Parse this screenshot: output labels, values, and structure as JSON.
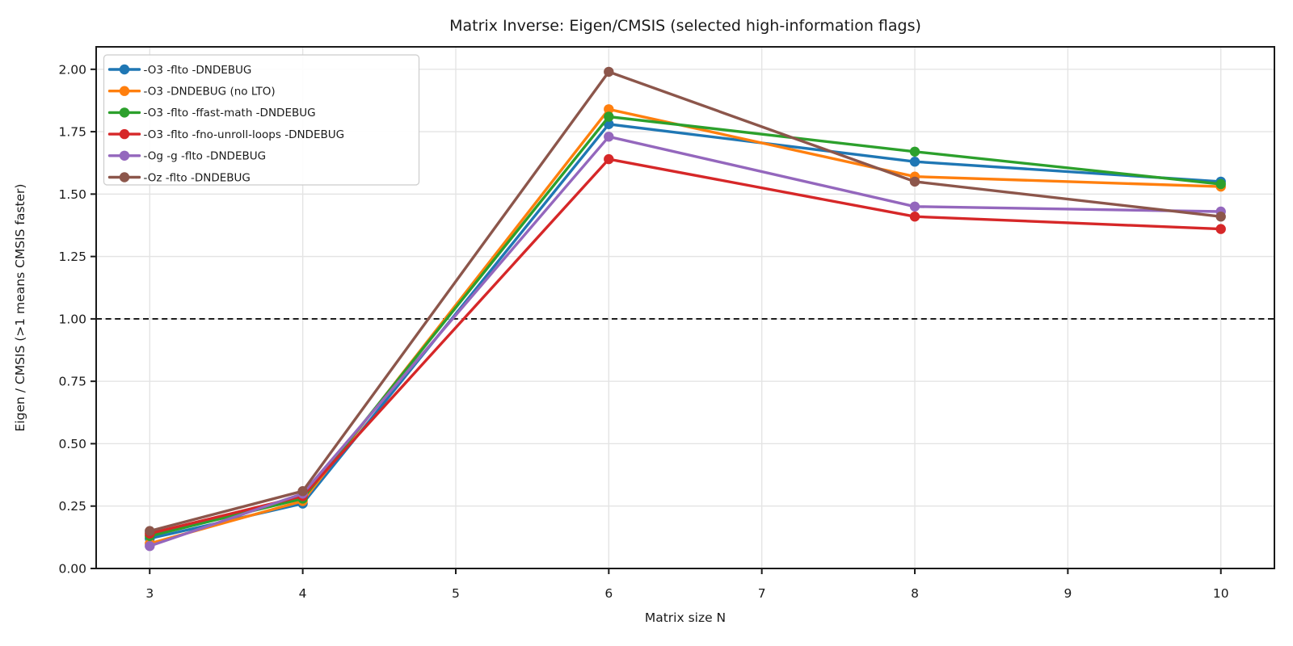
{
  "chart_data": {
    "type": "line",
    "title": "Matrix Inverse: Eigen/CMSIS (selected high-information flags)",
    "xlabel": "Matrix size N",
    "ylabel": "Eigen / CMSIS (>1 means CMSIS faster)",
    "x": [
      3,
      4,
      6,
      8,
      10
    ],
    "series": [
      {
        "name": "-O3 -flto -DNDEBUG",
        "color": "#1f77b4",
        "values": [
          0.12,
          0.26,
          1.78,
          1.63,
          1.55
        ]
      },
      {
        "name": "-O3 -DNDEBUG (no LTO)",
        "color": "#ff7f0e",
        "values": [
          0.1,
          0.27,
          1.84,
          1.57,
          1.53
        ]
      },
      {
        "name": "-O3 -flto -ffast-math -DNDEBUG",
        "color": "#2ca02c",
        "values": [
          0.13,
          0.28,
          1.81,
          1.67,
          1.54
        ]
      },
      {
        "name": "-O3 -flto -fno-unroll-loops -DNDEBUG",
        "color": "#d62728",
        "values": [
          0.14,
          0.29,
          1.64,
          1.41,
          1.36
        ]
      },
      {
        "name": "-Og -g -flto -DNDEBUG",
        "color": "#9467bd",
        "values": [
          0.09,
          0.3,
          1.73,
          1.45,
          1.43
        ]
      },
      {
        "name": "-Oz -flto -DNDEBUG",
        "color": "#8c564b",
        "values": [
          0.15,
          0.31,
          1.99,
          1.55,
          1.41
        ]
      }
    ],
    "xticks": [
      3,
      4,
      5,
      6,
      7,
      8,
      9,
      10
    ],
    "yticks": [
      0.0,
      0.25,
      0.5,
      0.75,
      1.0,
      1.25,
      1.5,
      1.75,
      2.0
    ],
    "ytick_labels": [
      "0.00",
      "0.25",
      "0.50",
      "0.75",
      "1.00",
      "1.25",
      "1.50",
      "1.75",
      "2.00"
    ],
    "xlim": [
      2.65,
      10.35
    ],
    "ylim": [
      0,
      2.09
    ],
    "grid": true,
    "legend_position": "upper left",
    "reference_line": {
      "y": 1.0,
      "style": "dashed",
      "color": "#000000"
    },
    "style": {
      "grid_color": "#e4e4e4",
      "spine_color": "#1a1a1a",
      "legend_border": "#cccccc",
      "legend_fill": "#ffffff",
      "background": "#ffffff"
    }
  }
}
